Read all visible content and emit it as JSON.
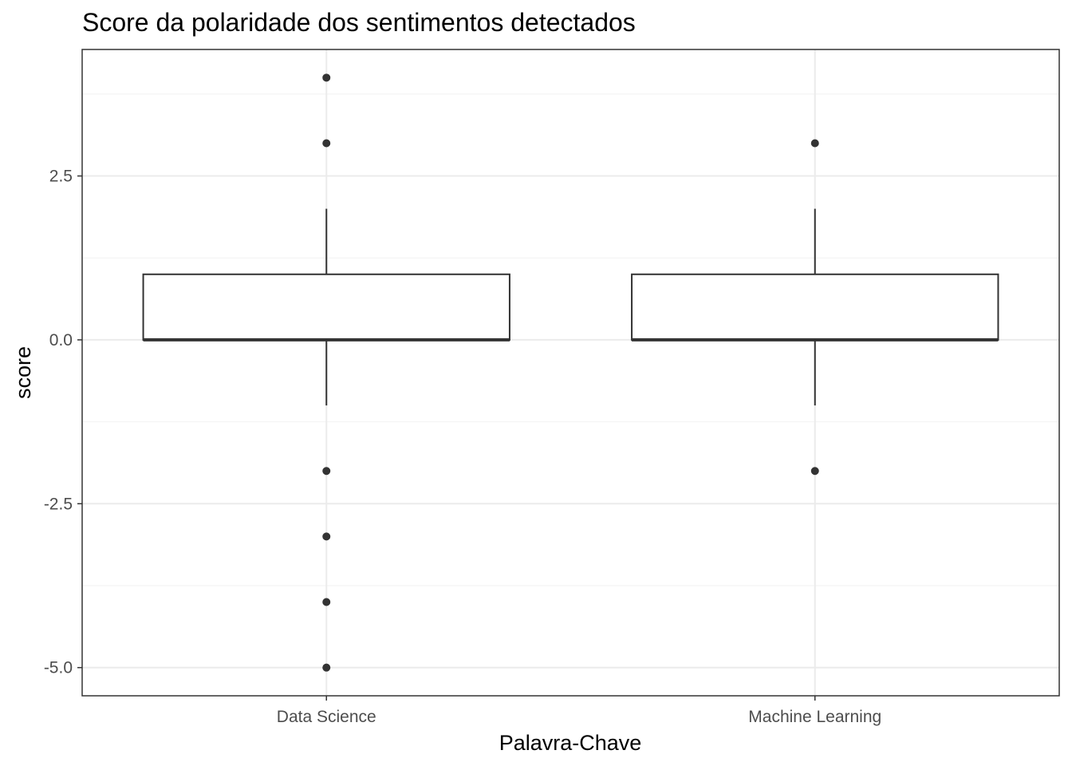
{
  "chart_data": {
    "type": "boxplot",
    "title": "Score da polaridade dos sentimentos detectados",
    "xlabel": "Palavra-Chave",
    "ylabel": "score",
    "categories": [
      "Data Science",
      "Machine Learning"
    ],
    "ylim": [
      -5.43,
      4.43
    ],
    "yticks": [
      -5.0,
      -2.5,
      0.0,
      2.5
    ],
    "ytick_labels": [
      "-5.0",
      "-2.5",
      "0.0",
      "2.5"
    ],
    "grid": true,
    "boxes": [
      {
        "category": "Data Science",
        "whisker_low": -1,
        "q1": 0,
        "median": 0,
        "q3": 1,
        "whisker_high": 2,
        "outliers": [
          4,
          3,
          -2,
          -3,
          -4,
          -5
        ]
      },
      {
        "category": "Machine Learning",
        "whisker_low": -1,
        "q1": 0,
        "median": 0,
        "q3": 1,
        "whisker_high": 2,
        "outliers": [
          3,
          -2
        ]
      }
    ]
  }
}
